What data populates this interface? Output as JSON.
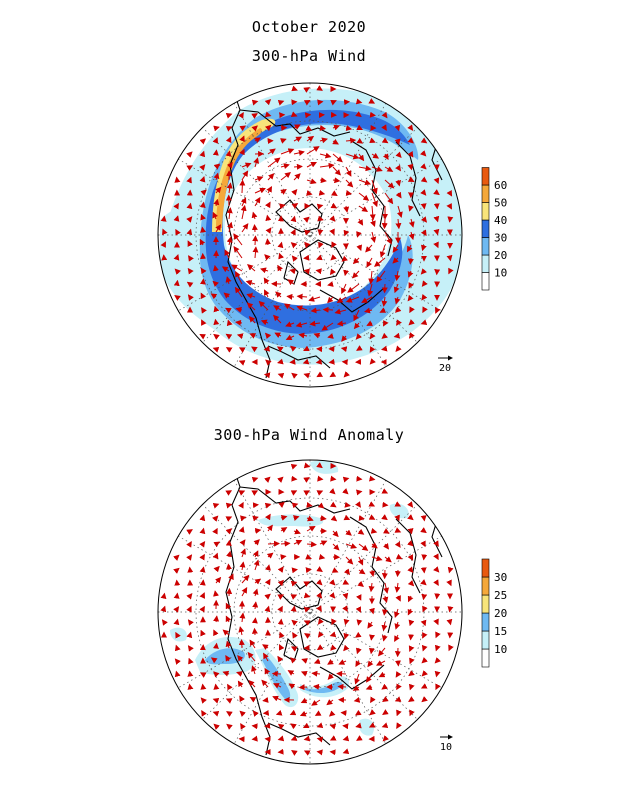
{
  "page": {
    "title": "October 2020"
  },
  "top_panel": {
    "title": "300-hPa Wind",
    "colorbar": {
      "levels": [
        "10",
        "20",
        "30",
        "40",
        "50",
        "60"
      ],
      "colors": [
        "#ffffff",
        "#c6f0f8",
        "#6fb9f2",
        "#2f6fe0",
        "#f8e47a",
        "#f5a83a",
        "#e85a10"
      ]
    },
    "reference_vector": "20"
  },
  "bottom_panel": {
    "title": "300-hPa Wind Anomaly",
    "colorbar": {
      "levels": [
        "10",
        "15",
        "20",
        "25",
        "30"
      ],
      "colors": [
        "#ffffff",
        "#c6f0f8",
        "#6fb9f2",
        "#f8e47a",
        "#f5a83a",
        "#e85a10"
      ]
    },
    "reference_vector": "10"
  },
  "colors": {
    "arrow": "#cc0000",
    "coast": "#000000",
    "grid": "#555555"
  }
}
